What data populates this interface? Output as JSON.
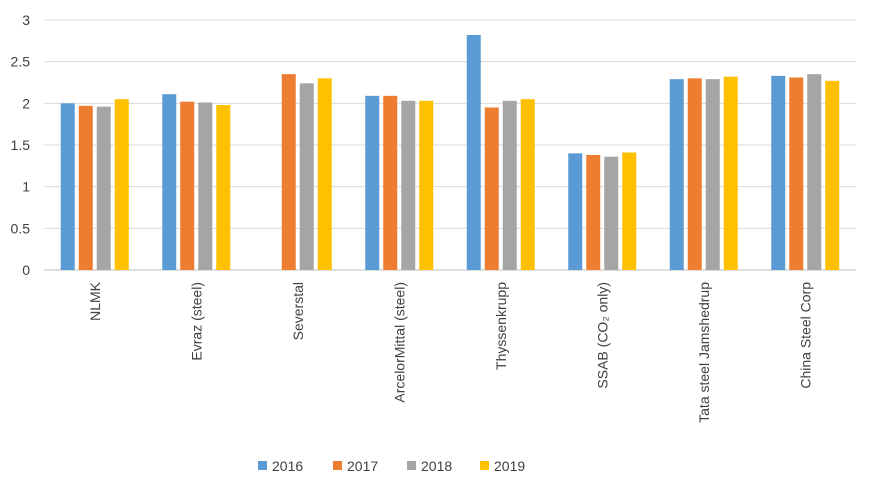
{
  "chart_data": {
    "type": "bar",
    "categories": [
      "NLMK",
      "Evraz (steel)",
      "Severstal",
      "ArcelorMittal (steel)",
      "Thyssenkrupp",
      "SSAB (CO₂ only)",
      "Tata steel Jamshedrup",
      "China Steel Corp"
    ],
    "series": [
      {
        "name": "2016",
        "color": "#5b9bd5",
        "values": [
          2.0,
          2.11,
          null,
          2.09,
          2.82,
          1.4,
          2.29,
          2.33
        ]
      },
      {
        "name": "2017",
        "color": "#ed7d31",
        "values": [
          1.97,
          2.02,
          2.35,
          2.09,
          1.95,
          1.38,
          2.3,
          2.31
        ]
      },
      {
        "name": "2018",
        "color": "#a5a5a5",
        "values": [
          1.96,
          2.01,
          2.24,
          2.03,
          2.03,
          1.36,
          2.29,
          2.35
        ]
      },
      {
        "name": "2019",
        "color": "#ffc000",
        "values": [
          2.05,
          1.98,
          2.3,
          2.03,
          2.05,
          1.41,
          2.32,
          2.27
        ]
      }
    ],
    "yticks": [
      "0",
      "0.5",
      "1",
      "1.5",
      "2",
      "2.5",
      "3"
    ],
    "ylim": [
      0,
      3
    ],
    "grid": true,
    "legend_position": "bottom"
  }
}
